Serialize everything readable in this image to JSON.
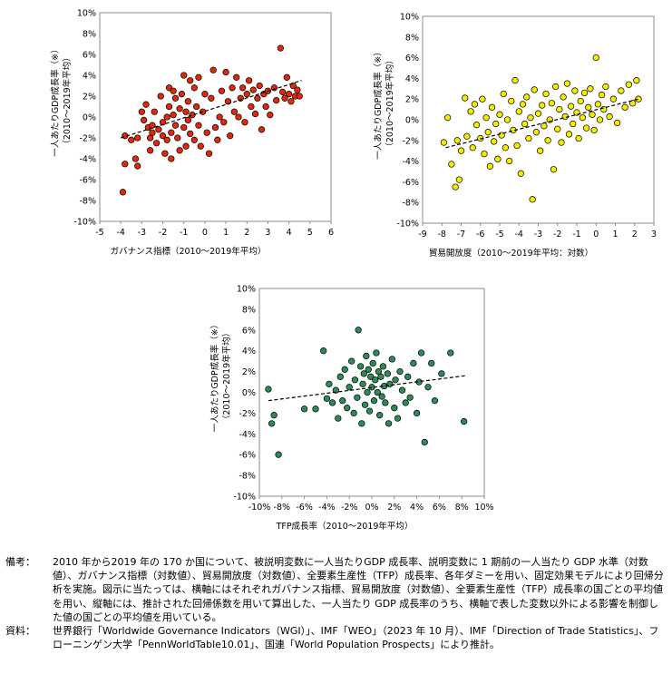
{
  "chart_data": [
    {
      "type": "scatter",
      "xlabel": "ガバナンス指標（2010〜2019年平均）",
      "ylabel": "一人あたりGDP成長率（※）（2010〜2019年平均）",
      "xlim": [
        -5,
        6
      ],
      "ylim": [
        -10,
        10
      ],
      "xticks": [
        "-5",
        "-4",
        "-3",
        "-2",
        "-1",
        "0",
        "1",
        "2",
        "3",
        "4",
        "5",
        "6"
      ],
      "yticks": [
        "10%",
        "8%",
        "6%",
        "4%",
        "2%",
        "0%",
        "-2%",
        "-4%",
        "-6%",
        "-8%",
        "-10%"
      ],
      "marker_color": "#E0280E",
      "trendline": {
        "x": [
          -4.0,
          4.6
        ],
        "y": [
          -2.0,
          3.5
        ],
        "style": "dashed"
      },
      "points": [
        [
          -3.9,
          -7.2
        ],
        [
          -3.8,
          -4.5
        ],
        [
          -3.8,
          -1.8
        ],
        [
          -3.5,
          -2.2
        ],
        [
          -3.3,
          -4.0
        ],
        [
          -3.2,
          -4.7
        ],
        [
          -3.2,
          -2.0
        ],
        [
          -3.0,
          0.5
        ],
        [
          -2.9,
          -0.3
        ],
        [
          -2.8,
          1.2
        ],
        [
          -2.7,
          -1.0
        ],
        [
          -2.6,
          -2.0
        ],
        [
          -2.6,
          -3.2
        ],
        [
          -2.5,
          -1.5
        ],
        [
          -2.5,
          -0.8
        ],
        [
          -2.4,
          0.5
        ],
        [
          -2.3,
          -2.5
        ],
        [
          -2.2,
          -1.2
        ],
        [
          -2.1,
          2.0
        ],
        [
          -2.0,
          -0.5
        ],
        [
          -2.0,
          -1.8
        ],
        [
          -1.9,
          -3.5
        ],
        [
          -1.8,
          -2.2
        ],
        [
          -1.8,
          0.0
        ],
        [
          -1.7,
          2.8
        ],
        [
          -1.7,
          1.0
        ],
        [
          -1.6,
          -1.5
        ],
        [
          -1.6,
          -4.0
        ],
        [
          -1.5,
          0.2
        ],
        [
          -1.5,
          2.5
        ],
        [
          -1.4,
          -0.8
        ],
        [
          -1.4,
          1.8
        ],
        [
          -1.3,
          -2.0
        ],
        [
          -1.2,
          0.8
        ],
        [
          -1.2,
          -3.2
        ],
        [
          -1.1,
          2.2
        ],
        [
          -1.0,
          -1.0
        ],
        [
          -1.0,
          4.0
        ],
        [
          -0.9,
          0.5
        ],
        [
          -0.9,
          -2.8
        ],
        [
          -0.8,
          1.5
        ],
        [
          -0.8,
          -0.3
        ],
        [
          -0.7,
          3.5
        ],
        [
          -0.7,
          -1.6
        ],
        [
          -0.6,
          0.2
        ],
        [
          -0.5,
          2.8
        ],
        [
          -0.5,
          -2.2
        ],
        [
          -0.4,
          1.0
        ],
        [
          -0.3,
          3.8
        ],
        [
          -0.3,
          -0.8
        ],
        [
          -0.2,
          -2.8
        ],
        [
          -0.1,
          0.5
        ],
        [
          0.0,
          2.2
        ],
        [
          0.1,
          -1.5
        ],
        [
          0.2,
          -3.5
        ],
        [
          0.3,
          1.8
        ],
        [
          0.4,
          4.5
        ],
        [
          0.5,
          -1.0
        ],
        [
          0.6,
          -2.2
        ],
        [
          0.7,
          0.0
        ],
        [
          0.8,
          2.5
        ],
        [
          0.9,
          -0.5
        ],
        [
          1.0,
          4.3
        ],
        [
          1.1,
          1.5
        ],
        [
          1.2,
          -1.8
        ],
        [
          1.3,
          2.8
        ],
        [
          1.4,
          0.5
        ],
        [
          1.5,
          3.8
        ],
        [
          1.6,
          0.0
        ],
        [
          1.7,
          1.8
        ],
        [
          1.8,
          2.8
        ],
        [
          1.9,
          -0.5
        ],
        [
          2.0,
          2.2
        ],
        [
          2.1,
          3.5
        ],
        [
          2.2,
          1.0
        ],
        [
          2.3,
          2.6
        ],
        [
          2.4,
          0.3
        ],
        [
          2.5,
          1.8
        ],
        [
          2.6,
          3.0
        ],
        [
          2.7,
          -1.2
        ],
        [
          2.8,
          2.2
        ],
        [
          2.9,
          1.0
        ],
        [
          3.0,
          2.5
        ],
        [
          3.1,
          0.2
        ],
        [
          3.3,
          2.8
        ],
        [
          3.4,
          1.6
        ],
        [
          3.6,
          6.6
        ],
        [
          3.7,
          2.4
        ],
        [
          3.8,
          1.8
        ],
        [
          3.9,
          3.8
        ],
        [
          4.0,
          2.2
        ],
        [
          4.1,
          1.5
        ],
        [
          4.2,
          3.0
        ],
        [
          4.3,
          2.0
        ],
        [
          4.4,
          2.6
        ],
        [
          4.5,
          2.0
        ]
      ]
    },
    {
      "type": "scatter",
      "xlabel": "貿易開放度（2010〜2019年平均：対数）",
      "ylabel": "一人あたりGDP成長率（※）（2010〜2019年平均）",
      "xlim": [
        -9,
        3
      ],
      "ylim": [
        -10,
        10
      ],
      "xticks": [
        "-9",
        "-8",
        "-7",
        "-6",
        "-5",
        "-4",
        "-3",
        "-2",
        "-1",
        "0",
        "1",
        "2",
        "3"
      ],
      "yticks": [
        "10%",
        "8%",
        "6%",
        "4%",
        "2%",
        "0%",
        "-2%",
        "-4%",
        "-6%",
        "-8%",
        "-10%"
      ],
      "marker_color": "#F5EB00",
      "trendline": {
        "x": [
          -7.8,
          2.2
        ],
        "y": [
          -2.7,
          2.0
        ],
        "style": "dashed"
      },
      "points": [
        [
          -7.9,
          -2.2
        ],
        [
          -7.7,
          0.2
        ],
        [
          -7.5,
          -4.3
        ],
        [
          -7.3,
          -6.5
        ],
        [
          -7.2,
          -2.0
        ],
        [
          -7.1,
          -5.8
        ],
        [
          -7.0,
          -3.0
        ],
        [
          -6.8,
          2.1
        ],
        [
          -6.7,
          -1.6
        ],
        [
          -6.5,
          0.8
        ],
        [
          -6.4,
          -2.7
        ],
        [
          -6.3,
          1.5
        ],
        [
          -6.2,
          -0.5
        ],
        [
          -6.0,
          -1.8
        ],
        [
          -5.9,
          2.0
        ],
        [
          -5.8,
          -3.3
        ],
        [
          -5.7,
          0.2
        ],
        [
          -5.6,
          -1.2
        ],
        [
          -5.5,
          -4.5
        ],
        [
          -5.4,
          1.2
        ],
        [
          -5.3,
          -2.1
        ],
        [
          -5.2,
          -0.4
        ],
        [
          -5.1,
          -3.8
        ],
        [
          -5.0,
          0.5
        ],
        [
          -4.9,
          -1.5
        ],
        [
          -4.8,
          2.5
        ],
        [
          -4.7,
          -2.7
        ],
        [
          -4.6,
          0.0
        ],
        [
          -4.5,
          -4.0
        ],
        [
          -4.4,
          1.8
        ],
        [
          -4.3,
          -1.0
        ],
        [
          -4.2,
          3.8
        ],
        [
          -4.1,
          -2.5
        ],
        [
          -4.0,
          0.8
        ],
        [
          -3.9,
          -5.2
        ],
        [
          -3.8,
          1.5
        ],
        [
          -3.7,
          -0.4
        ],
        [
          -3.6,
          2.2
        ],
        [
          -3.5,
          -1.8
        ],
        [
          -3.4,
          0.2
        ],
        [
          -3.3,
          -7.7
        ],
        [
          -3.2,
          2.9
        ],
        [
          -3.1,
          -1.2
        ],
        [
          -3.0,
          0.6
        ],
        [
          -2.9,
          -3.0
        ],
        [
          -2.8,
          1.4
        ],
        [
          -2.7,
          -0.6
        ],
        [
          -2.6,
          2.5
        ],
        [
          -2.5,
          -2.0
        ],
        [
          -2.4,
          0.0
        ],
        [
          -2.3,
          1.6
        ],
        [
          -2.2,
          -4.8
        ],
        [
          -2.1,
          3.2
        ],
        [
          -2.0,
          -0.9
        ],
        [
          -1.9,
          1.0
        ],
        [
          -1.8,
          -2.2
        ],
        [
          -1.7,
          2.2
        ],
        [
          -1.6,
          0.3
        ],
        [
          -1.5,
          3.5
        ],
        [
          -1.4,
          -1.4
        ],
        [
          -1.3,
          1.3
        ],
        [
          -1.2,
          -0.4
        ],
        [
          -1.1,
          2.8
        ],
        [
          -1.0,
          0.7
        ],
        [
          -0.9,
          -1.8
        ],
        [
          -0.8,
          1.8
        ],
        [
          -0.7,
          0.2
        ],
        [
          -0.6,
          2.6
        ],
        [
          -0.5,
          -0.8
        ],
        [
          -0.4,
          1.2
        ],
        [
          -0.3,
          3.0
        ],
        [
          -0.2,
          0.5
        ],
        [
          -0.1,
          -1.0
        ],
        [
          0.0,
          6.0
        ],
        [
          0.1,
          1.5
        ],
        [
          0.2,
          0.0
        ],
        [
          0.3,
          2.4
        ],
        [
          0.4,
          1.0
        ],
        [
          0.5,
          3.2
        ],
        [
          0.7,
          0.3
        ],
        [
          0.9,
          2.0
        ],
        [
          1.1,
          -0.3
        ],
        [
          1.3,
          2.8
        ],
        [
          1.5,
          1.2
        ],
        [
          1.7,
          3.4
        ],
        [
          1.9,
          1.6
        ],
        [
          2.1,
          3.8
        ],
        [
          2.2,
          2.0
        ]
      ]
    },
    {
      "type": "scatter",
      "xlabel": "TFP成長率（2010〜2019年平均）",
      "ylabel": "一人あたりGDP成長率（※）（2010〜2019年平均）",
      "xlim": [
        -10,
        10
      ],
      "ylim": [
        -10,
        10
      ],
      "xticks": [
        "-10%",
        "-8%",
        "-6%",
        "-4%",
        "-2%",
        "0%",
        "2%",
        "4%",
        "6%",
        "8%",
        "10%"
      ],
      "yticks": [
        "10%",
        "8%",
        "6%",
        "4%",
        "2%",
        "0%",
        "-2%",
        "-4%",
        "-6%",
        "-8%",
        "-10%"
      ],
      "marker_color": "#2E8B57",
      "trendline": {
        "x": [
          -9.2,
          8.3
        ],
        "y": [
          -0.8,
          1.6
        ],
        "style": "dashed"
      },
      "points": [
        [
          -9.2,
          0.3
        ],
        [
          -8.9,
          -3.0
        ],
        [
          -8.7,
          -2.2
        ],
        [
          -8.3,
          -6.0
        ],
        [
          -6.0,
          -1.6
        ],
        [
          -5.0,
          -1.6
        ],
        [
          -4.3,
          4.0
        ],
        [
          -4.0,
          -0.6
        ],
        [
          -3.8,
          0.8
        ],
        [
          -3.5,
          -1.0
        ],
        [
          -3.2,
          0.2
        ],
        [
          -3.0,
          -2.5
        ],
        [
          -2.8,
          1.5
        ],
        [
          -2.6,
          -0.8
        ],
        [
          -2.4,
          2.2
        ],
        [
          -2.2,
          -1.5
        ],
        [
          -2.0,
          0.5
        ],
        [
          -1.8,
          3.0
        ],
        [
          -1.6,
          -2.0
        ],
        [
          -1.5,
          1.2
        ],
        [
          -1.3,
          -0.5
        ],
        [
          -1.2,
          6.0
        ],
        [
          -1.0,
          2.5
        ],
        [
          -0.9,
          -3.0
        ],
        [
          -0.8,
          0.8
        ],
        [
          -0.7,
          1.8
        ],
        [
          -0.6,
          -1.2
        ],
        [
          -0.5,
          3.5
        ],
        [
          -0.4,
          0.0
        ],
        [
          -0.3,
          2.2
        ],
        [
          -0.2,
          -1.8
        ],
        [
          -0.1,
          1.5
        ],
        [
          0.0,
          0.5
        ],
        [
          0.1,
          2.8
        ],
        [
          0.2,
          -0.8
        ],
        [
          0.3,
          1.2
        ],
        [
          0.4,
          3.8
        ],
        [
          0.5,
          0.0
        ],
        [
          0.6,
          2.0
        ],
        [
          0.7,
          -2.2
        ],
        [
          0.8,
          1.5
        ],
        [
          0.9,
          -0.4
        ],
        [
          1.0,
          2.5
        ],
        [
          1.1,
          0.6
        ],
        [
          1.2,
          -1.0
        ],
        [
          1.4,
          1.8
        ],
        [
          1.5,
          -3.0
        ],
        [
          1.6,
          0.8
        ],
        [
          1.8,
          3.2
        ],
        [
          2.0,
          -1.5
        ],
        [
          2.1,
          1.2
        ],
        [
          2.3,
          -2.5
        ],
        [
          2.5,
          2.0
        ],
        [
          2.7,
          0.2
        ],
        [
          3.0,
          -1.0
        ],
        [
          3.2,
          1.5
        ],
        [
          3.4,
          -0.5
        ],
        [
          3.7,
          2.8
        ],
        [
          4.0,
          -2.0
        ],
        [
          4.2,
          1.0
        ],
        [
          4.4,
          3.8
        ],
        [
          4.7,
          -4.8
        ],
        [
          5.0,
          0.5
        ],
        [
          5.3,
          2.8
        ],
        [
          5.6,
          -0.8
        ],
        [
          6.2,
          1.8
        ],
        [
          7.0,
          3.8
        ],
        [
          8.2,
          -2.8
        ]
      ]
    }
  ],
  "notes": {
    "biko_label": "備考：",
    "biko_text": "2010 年から2019 年の 170 か国について、被説明変数に一人当たりGDP 成長率、説明変数に 1 期前の一人当たり GDP 水準（対数値）、ガバナンス指標（対数値）、貿易開放度（対数値）、全要素生産性（TFP）成長率、各年ダミーを用い、固定効果モデルにより回帰分析を実施。図示に当たっては、横軸にはそれぞれガバナンス指標、貿易開放度（対数値）、全要素生産性（TFP）成長率の国ごとの平均値を用い、縦軸には、推計された回帰係数を用いて算出した、一人当たり GDP 成長率のうち、横軸で表した変数以外による影響を制御した値の国ごとの平均値を用いている。",
    "shiryo_label": "資料：",
    "shiryo_text": "世界銀行「Worldwide Governance Indicators（WGI）」、IMF「WEO」（2023 年 10 月）、IMF「Direction of Trade Statistics」、フローニンゲン大学「PennWorldTable10.01」、国連「World Population Prospects」により推計。"
  }
}
